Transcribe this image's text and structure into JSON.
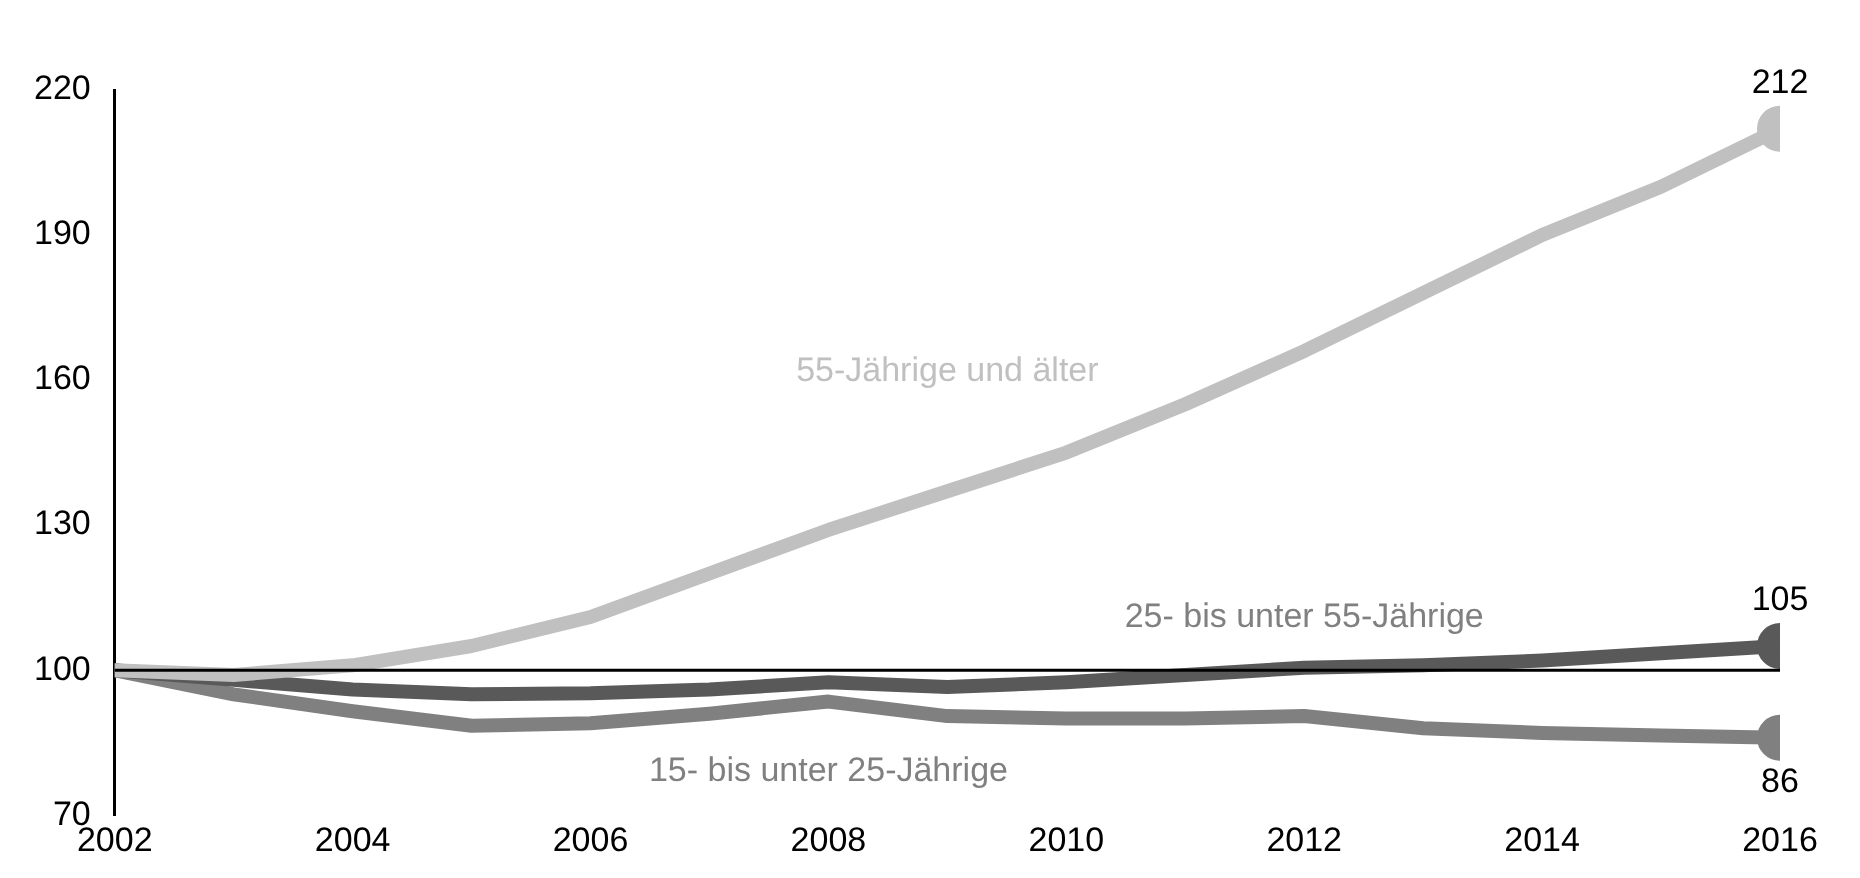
{
  "chart_data": {
    "type": "line",
    "x": [
      2002,
      2003,
      2004,
      2005,
      2006,
      2007,
      2008,
      2009,
      2010,
      2011,
      2012,
      2013,
      2014,
      2015,
      2016
    ],
    "xlim": [
      2002,
      2016
    ],
    "xticks": [
      2002,
      2004,
      2006,
      2008,
      2010,
      2012,
      2014,
      2016
    ],
    "ylim": [
      70,
      220
    ],
    "yticks": [
      70,
      100,
      130,
      160,
      190,
      220
    ],
    "grid": false,
    "legend": false,
    "ref_lines": [
      {
        "axis": "y",
        "value": 100,
        "color": "#000000"
      }
    ],
    "series": [
      {
        "name": "55-Jährige und älter",
        "color": "#c0c0c0",
        "values": [
          100,
          99,
          101,
          105,
          111,
          120,
          129,
          137,
          145,
          155,
          166,
          178,
          190,
          200,
          212
        ],
        "value_labels": [
          null,
          null,
          null,
          null,
          null,
          null,
          null,
          null,
          null,
          null,
          null,
          null,
          null,
          null,
          "212"
        ]
      },
      {
        "name": "25- bis unter 55-Jährige",
        "color": "#595959",
        "values": [
          100,
          98,
          96,
          95,
          95.2,
          96,
          97.5,
          96.5,
          97.5,
          99,
          100.5,
          101,
          102,
          103.5,
          105
        ],
        "value_labels": [
          null,
          null,
          null,
          null,
          null,
          null,
          null,
          null,
          null,
          null,
          null,
          null,
          null,
          null,
          "105"
        ]
      },
      {
        "name": "15- bis unter 25-Jährige",
        "color": "#808080",
        "values": [
          100,
          95,
          91.5,
          88.5,
          89,
          91,
          93.5,
          90.5,
          90,
          90,
          90.5,
          88,
          87,
          86.5,
          86
        ],
        "value_labels": [
          null,
          null,
          null,
          null,
          null,
          null,
          null,
          null,
          null,
          null,
          null,
          null,
          null,
          null,
          "86"
        ]
      }
    ]
  }
}
